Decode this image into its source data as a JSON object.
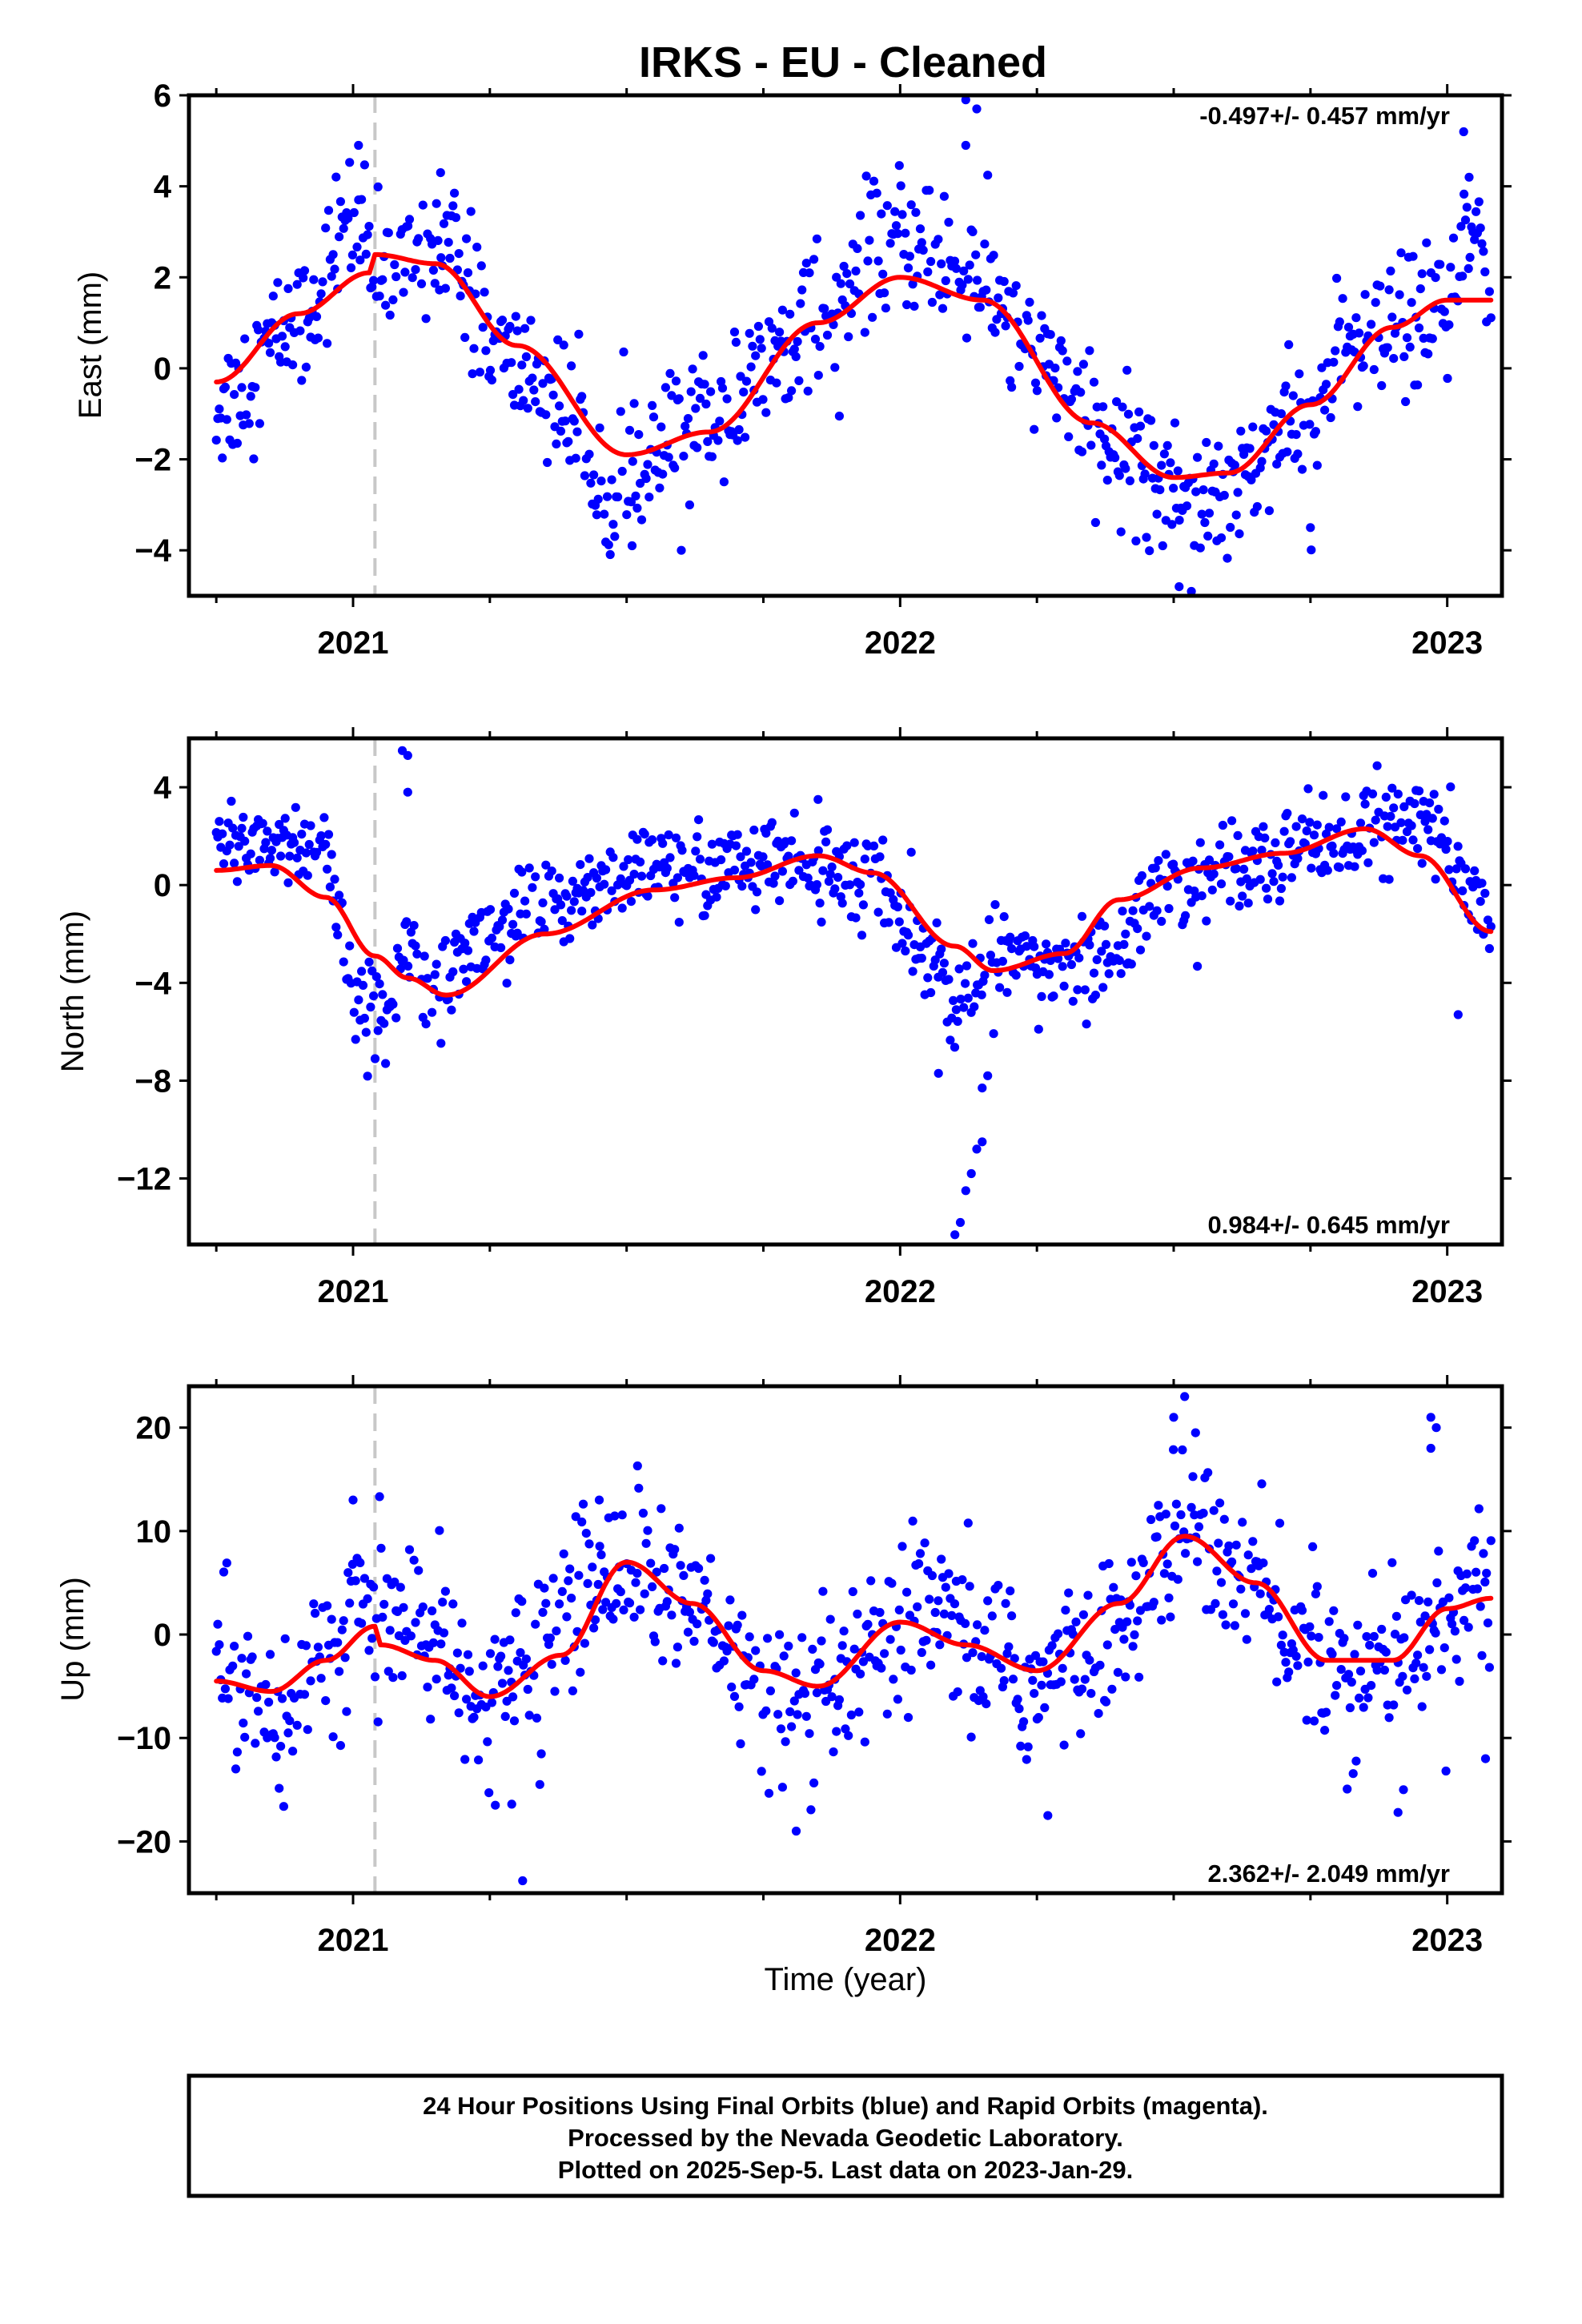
{
  "title": "IRKS  - EU - Cleaned",
  "xlabel": "Time (year)",
  "footer": {
    "line1": "24 Hour Positions Using Final Orbits (blue) and Rapid Orbits (magenta).",
    "line2": "Processed by the Nevada Geodetic Laboratory.",
    "line3": "Plotted on 2025-Sep-5. Last data on 2023-Jan-29."
  },
  "colors": {
    "final_orbits": "#0000ff",
    "rapid_orbits": "#ff00ff",
    "model_fit": "#ff0000",
    "equipment_change": "#c8c8c8"
  },
  "chart_data": [
    {
      "type": "scatter",
      "panel": "east",
      "ylabel": "East (mm)",
      "xlim": [
        2020.7,
        2023.1
      ],
      "ylim": [
        -5,
        6
      ],
      "yticks": [
        -4,
        -2,
        0,
        2,
        4,
        6
      ],
      "xticks": [
        2021,
        2022,
        2023
      ],
      "grid": false,
      "rate_text": "-0.497+/- 0.457 mm/yr",
      "rate_position": "top-right",
      "equipment_change_year": 2021.04,
      "model": {
        "x": [
          2020.75,
          2020.9,
          2021.03,
          2021.04,
          2021.15,
          2021.3,
          2021.5,
          2021.65,
          2021.85,
          2022.0,
          2022.15,
          2022.35,
          2022.5,
          2022.6,
          2022.75,
          2022.9,
          2023.0,
          2023.08
        ],
        "y": [
          -0.3,
          1.2,
          2.1,
          2.5,
          2.3,
          0.5,
          -1.9,
          -1.4,
          1.0,
          2.0,
          1.5,
          -1.2,
          -2.4,
          -2.3,
          -0.8,
          0.9,
          1.5,
          1.5
        ]
      },
      "anchors": {
        "x": [
          2020.75,
          2020.9,
          2021.0,
          2021.04,
          2021.15,
          2021.3,
          2021.5,
          2021.65,
          2021.85,
          2022.0,
          2022.12,
          2022.25,
          2022.4,
          2022.55,
          2022.7,
          2022.85,
          2023.0,
          2023.05,
          2023.08
        ],
        "y": [
          -0.8,
          1.0,
          3.3,
          2.0,
          2.8,
          0.0,
          -2.5,
          -1.0,
          1.2,
          2.8,
          2.2,
          0.3,
          -1.8,
          -2.8,
          -1.5,
          0.5,
          1.2,
          3.0,
          1.8
        ]
      },
      "spread": 0.75,
      "outliers": [
        [
          2021.01,
          4.9
        ],
        [
          2021.16,
          4.3
        ],
        [
          2022.12,
          5.9
        ],
        [
          2022.14,
          5.7
        ],
        [
          2022.12,
          4.9
        ],
        [
          2021.51,
          -3.9
        ],
        [
          2021.6,
          -4.0
        ],
        [
          2022.48,
          -3.9
        ],
        [
          2022.51,
          -4.8
        ],
        [
          2022.75,
          -3.5
        ],
        [
          2023.03,
          5.2
        ],
        [
          2023.04,
          4.2
        ]
      ]
    },
    {
      "type": "scatter",
      "panel": "north",
      "ylabel": "North (mm)",
      "xlim": [
        2020.7,
        2023.1
      ],
      "ylim": [
        -14.7,
        6
      ],
      "yticks": [
        -12,
        -8,
        -4,
        0,
        4
      ],
      "xticks": [
        2021,
        2022,
        2023
      ],
      "grid": false,
      "rate_text": "0.984+/- 0.645 mm/yr",
      "rate_position": "bottom-right",
      "equipment_change_year": 2021.04,
      "model": {
        "x": [
          2020.75,
          2020.85,
          2020.95,
          2021.04,
          2021.1,
          2021.17,
          2021.35,
          2021.55,
          2021.7,
          2021.85,
          2021.95,
          2022.1,
          2022.17,
          2022.3,
          2022.4,
          2022.55,
          2022.7,
          2022.85,
          2022.95,
          2023.08
        ],
        "y": [
          0.6,
          0.8,
          -0.5,
          -2.9,
          -3.8,
          -4.5,
          -2.0,
          -0.2,
          0.3,
          1.2,
          0.5,
          -2.5,
          -3.5,
          -2.8,
          -0.6,
          0.7,
          1.3,
          2.3,
          1.2,
          -1.9
        ]
      },
      "anchors": {
        "x": [
          2020.75,
          2020.85,
          2020.95,
          2021.0,
          2021.05,
          2021.1,
          2021.17,
          2021.3,
          2021.5,
          2021.7,
          2021.85,
          2021.95,
          2022.05,
          2022.1,
          2022.2,
          2022.35,
          2022.5,
          2022.65,
          2022.8,
          2022.95,
          2023.05,
          2023.08
        ],
        "y": [
          1.8,
          1.8,
          1.5,
          -4.5,
          -5.5,
          -2.5,
          -3.3,
          -1.3,
          0.5,
          0.7,
          0.8,
          0.0,
          -2.5,
          -5.0,
          -2.8,
          -3.2,
          0.0,
          1.3,
          1.8,
          2.8,
          -0.5,
          -1.5
        ]
      },
      "spread": 0.95,
      "outliers": [
        [
          2021.09,
          5.5
        ],
        [
          2021.1,
          5.3
        ],
        [
          2021.1,
          3.8
        ],
        [
          2022.1,
          -14.3
        ],
        [
          2022.11,
          -13.8
        ],
        [
          2022.12,
          -12.5
        ],
        [
          2022.13,
          -11.8
        ],
        [
          2022.14,
          -10.8
        ],
        [
          2022.15,
          -10.5
        ],
        [
          2022.15,
          -8.3
        ],
        [
          2022.16,
          -7.8
        ],
        [
          2022.07,
          -7.7
        ],
        [
          2021.85,
          3.5
        ],
        [
          2023.02,
          -5.3
        ]
      ]
    },
    {
      "type": "scatter",
      "panel": "up",
      "ylabel": "Up (mm)",
      "xlim": [
        2020.7,
        2023.1
      ],
      "ylim": [
        -25,
        24
      ],
      "yticks": [
        -20,
        -10,
        0,
        10,
        20
      ],
      "xticks": [
        2021,
        2022,
        2023
      ],
      "grid": false,
      "rate_text": "2.362+/- 2.049 mm/yr",
      "rate_position": "bottom-right",
      "equipment_change_year": 2021.04,
      "model": {
        "x": [
          2020.75,
          2020.85,
          2020.95,
          2021.04,
          2021.05,
          2021.15,
          2021.25,
          2021.38,
          2021.5,
          2021.62,
          2021.75,
          2021.85,
          2022.0,
          2022.12,
          2022.25,
          2022.4,
          2022.52,
          2022.65,
          2022.78,
          2022.9,
          2023.0,
          2023.08
        ],
        "y": [
          -4.5,
          -5.5,
          -2.5,
          0.8,
          -1.0,
          -2.5,
          -6.0,
          -2.0,
          7.0,
          3.0,
          -3.5,
          -5.0,
          1.2,
          -1.0,
          -3.5,
          3.0,
          9.5,
          5.0,
          -2.5,
          -2.5,
          2.5,
          3.5
        ]
      },
      "anchors": {
        "x": [
          2020.75,
          2020.88,
          2020.97,
          2021.04,
          2021.12,
          2021.22,
          2021.32,
          2021.42,
          2021.5,
          2021.62,
          2021.72,
          2021.82,
          2021.95,
          2022.05,
          2022.15,
          2022.25,
          2022.35,
          2022.45,
          2022.52,
          2022.62,
          2022.72,
          2022.82,
          2022.92,
          2023.0,
          2023.05,
          2023.08
        ],
        "y": [
          -3.0,
          -7.0,
          -0.5,
          2.0,
          1.0,
          -7.0,
          -3.0,
          4.0,
          7.5,
          2.5,
          -4.0,
          -8.0,
          -3.0,
          1.5,
          -2.0,
          -5.0,
          -2.0,
          4.0,
          11.0,
          6.0,
          0.0,
          -5.0,
          -1.0,
          0.0,
          6.0,
          3.0
        ]
      },
      "spread": 3.9,
      "outliers": [
        [
          2021.31,
          -23.8
        ],
        [
          2021.26,
          -16.5
        ],
        [
          2021.29,
          -16.4
        ],
        [
          2021.81,
          -19.0
        ],
        [
          2022.27,
          -17.5
        ],
        [
          2022.52,
          23.0
        ],
        [
          2022.5,
          21.0
        ],
        [
          2022.54,
          19.5
        ],
        [
          2022.97,
          21.0
        ],
        [
          2022.97,
          18.0
        ],
        [
          2022.98,
          20.0
        ],
        [
          2022.91,
          -17.2
        ],
        [
          2022.92,
          -15.0
        ],
        [
          2023.07,
          -12.0
        ],
        [
          2021.52,
          16.3
        ],
        [
          2021.0,
          13.0
        ],
        [
          2021.45,
          13.0
        ]
      ]
    }
  ]
}
